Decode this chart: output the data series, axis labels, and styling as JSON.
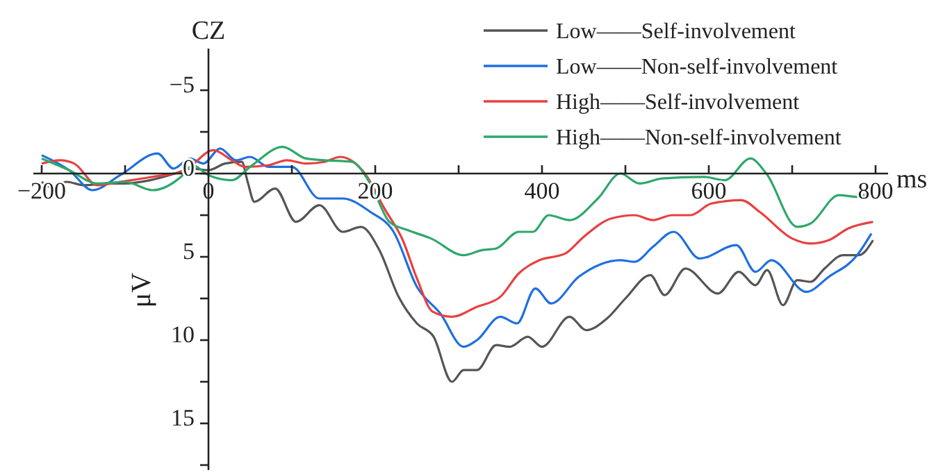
{
  "chart_data": {
    "type": "line",
    "title": "CZ",
    "xlabel": "ms",
    "ylabel": "μV",
    "xlim": [
      -210,
      815
    ],
    "ylim": [
      17.8,
      -7.5
    ],
    "xticks": [
      {
        "value": -200,
        "label": "−200"
      },
      {
        "value": -100,
        "label": null
      },
      0,
      {
        "value": 100,
        "label": null
      },
      200,
      {
        "value": 300,
        "label": null
      },
      400,
      {
        "value": 500,
        "label": null
      },
      600,
      {
        "value": 700,
        "label": null
      },
      800
    ],
    "yticks": [
      {
        "value": -5,
        "label": "−5"
      },
      {
        "value": -2.5,
        "label": null
      },
      0,
      {
        "value": 2.5,
        "label": null
      },
      5,
      {
        "value": 7.5,
        "label": null
      },
      10,
      {
        "value": 12.5,
        "label": null
      },
      15,
      {
        "value": 17.5,
        "label": null
      }
    ],
    "legend": "top right",
    "series": [
      {
        "name": "Low——Self-involvement",
        "color": "#555555",
        "x": [
          -200,
          -190,
          -170,
          -150,
          -120,
          -100,
          -70,
          -40,
          -20,
          0,
          20,
          40,
          47,
          55,
          80,
          105,
          133,
          161,
          183,
          205,
          228,
          250,
          270,
          292,
          306,
          322,
          345,
          361,
          383,
          400,
          433,
          453,
          478,
          500,
          530,
          547,
          572,
          611,
          636,
          656,
          670,
          689,
          706,
          722,
          739,
          761,
          780,
          797
        ],
        "values": [
          0.5,
          0.8,
          0.5,
          0.7,
          0.6,
          0.6,
          0.4,
          0.0,
          -0.3,
          -0.2,
          -0.6,
          -0.7,
          0.5,
          1.7,
          0.9,
          2.9,
          1.9,
          3.5,
          3.2,
          4.6,
          7.4,
          9.0,
          9.8,
          12.5,
          11.8,
          11.8,
          10.3,
          10.4,
          9.8,
          10.4,
          8.6,
          9.4,
          8.7,
          7.5,
          6.1,
          7.3,
          5.7,
          7.2,
          5.9,
          6.7,
          5.8,
          7.9,
          6.4,
          6.5,
          5.7,
          4.9,
          4.9,
          4.0
        ]
      },
      {
        "name": "Low——Non-self-involvement",
        "color": "#1f6fe0",
        "x": [
          -200,
          -167,
          -139,
          -106,
          -61,
          -42,
          -22,
          -6,
          14,
          33,
          50,
          72,
          100,
          133,
          161,
          194,
          222,
          250,
          278,
          306,
          322,
          350,
          370,
          392,
          411,
          444,
          494,
          511,
          533,
          558,
          589,
          633,
          656,
          675,
          717,
          744,
          778,
          795
        ],
        "values": [
          -1.1,
          -0.2,
          1.0,
          0.1,
          -1.2,
          -0.3,
          -0.9,
          -0.6,
          -1.5,
          -0.8,
          -1.0,
          -0.4,
          -0.4,
          1.5,
          1.5,
          2.3,
          3.5,
          6.8,
          8.4,
          10.4,
          10.0,
          8.6,
          9.0,
          6.9,
          7.8,
          6.2,
          5.2,
          5.3,
          4.4,
          3.5,
          5.1,
          4.3,
          5.9,
          5.2,
          7.1,
          6.2,
          4.9,
          3.6
        ]
      },
      {
        "name": "High——Self-involvement",
        "color": "#e84040",
        "x": [
          -200,
          -178,
          -161,
          -133,
          -106,
          -67,
          -28,
          6,
          28,
          44,
          72,
          94,
          117,
          139,
          158,
          189,
          211,
          233,
          250,
          269,
          292,
          322,
          350,
          372,
          397,
          428,
          450,
          483,
          511,
          533,
          556,
          578,
          603,
          639,
          661,
          700,
          722,
          744,
          767,
          797
        ],
        "values": [
          -0.6,
          -0.8,
          -0.6,
          0.7,
          0.5,
          0.2,
          -0.2,
          -1.4,
          -0.8,
          -0.4,
          -0.5,
          -0.8,
          -0.6,
          -0.7,
          -1.0,
          0.1,
          2.1,
          4.0,
          6.3,
          8.3,
          8.6,
          8.0,
          7.4,
          6.0,
          5.2,
          4.8,
          3.8,
          2.7,
          2.5,
          2.8,
          2.5,
          2.5,
          1.8,
          1.6,
          2.3,
          3.9,
          4.2,
          4.0,
          3.3,
          2.9
        ]
      },
      {
        "name": "High——Non-self-involvement",
        "color": "#2ea86a",
        "x": [
          -200,
          -167,
          -133,
          -100,
          -67,
          -33,
          -19,
          0,
          28,
          50,
          89,
          117,
          139,
          172,
          194,
          217,
          239,
          267,
          306,
          328,
          345,
          372,
          389,
          408,
          433,
          467,
          494,
          517,
          544,
          594,
          619,
          650,
          669,
          706,
          722,
          756,
          778,
          797
        ],
        "values": [
          -0.9,
          -0.2,
          0.6,
          0.5,
          1.0,
          0.2,
          -0.5,
          0.1,
          0.4,
          -0.4,
          -1.6,
          -0.9,
          -0.8,
          -0.7,
          0.6,
          2.9,
          3.4,
          3.9,
          4.9,
          4.6,
          4.5,
          3.5,
          3.5,
          2.5,
          2.8,
          1.5,
          0,
          0.6,
          0.3,
          0.2,
          0.4,
          -0.9,
          0.0,
          3.2,
          3.0,
          1.3,
          1.4,
          1.0
        ]
      }
    ]
  }
}
